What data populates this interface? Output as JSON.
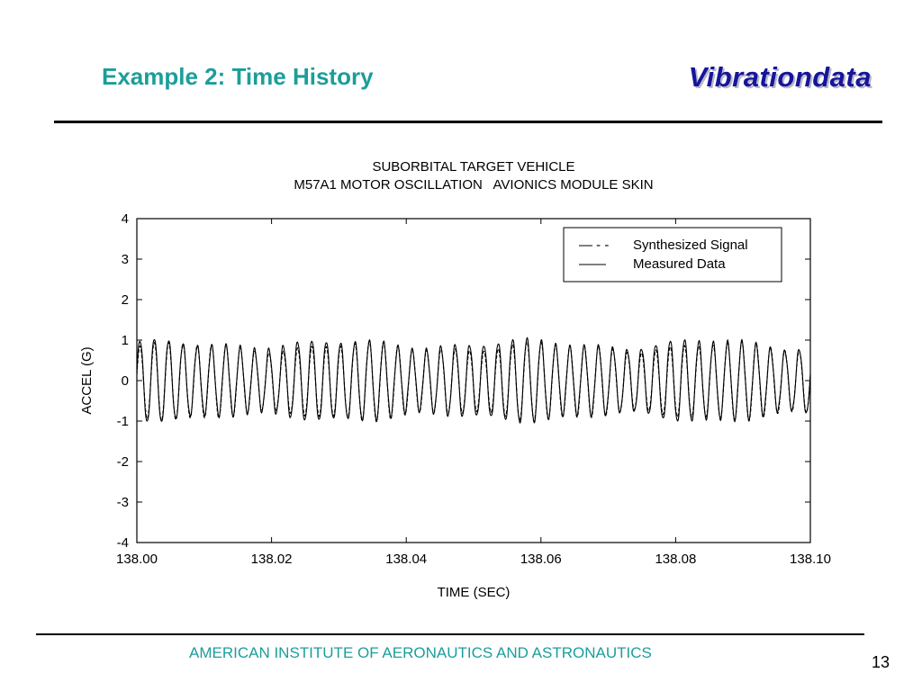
{
  "slide": {
    "title": "Example 2: Time History",
    "brand": "Vibrationdata",
    "footer": "AMERICAN INSTITUTE OF AERONAUTICS AND ASTRONAUTICS",
    "page_number": "13"
  },
  "colors": {
    "title": "#1b9e9a",
    "brand": "#16159a",
    "footer": "#1b9e9a"
  },
  "chart_data": {
    "type": "line",
    "title": "SUBORBITAL TARGET VEHICLE",
    "subtitle": "M57A1 MOTOR OSCILLATION   AVIONICS MODULE SKIN",
    "xlabel": "TIME (SEC)",
    "ylabel": "ACCEL (G)",
    "xlim": [
      138.0,
      138.1
    ],
    "ylim": [
      -4,
      4
    ],
    "x_ticks": [
      138.0,
      138.02,
      138.04,
      138.06,
      138.08,
      138.1
    ],
    "x_tick_labels": [
      "138.00",
      "138.02",
      "138.04",
      "138.06",
      "138.08",
      "138.10"
    ],
    "y_ticks": [
      4,
      3,
      2,
      1,
      0,
      -1,
      -2,
      -3,
      -4
    ],
    "y_tick_labels": [
      "4",
      "3",
      "2",
      "1",
      "0",
      "-1",
      "-2",
      "-3",
      "-4"
    ],
    "grid": false,
    "legend_position": "top-right",
    "series": [
      {
        "name": "Synthesized Signal",
        "style": "dashed",
        "color": "#000000",
        "frequency_hz": 470,
        "approx_amplitude_g": 0.85
      },
      {
        "name": "Measured Data",
        "style": "solid",
        "color": "#000000",
        "frequency_hz": 470,
        "approx_amplitude_g": 0.9
      }
    ],
    "legend_labels": {
      "synth_symbol": "— - -",
      "synth": "Synthesized Signal",
      "measured_symbol": "——",
      "measured": "Measured Data"
    }
  }
}
